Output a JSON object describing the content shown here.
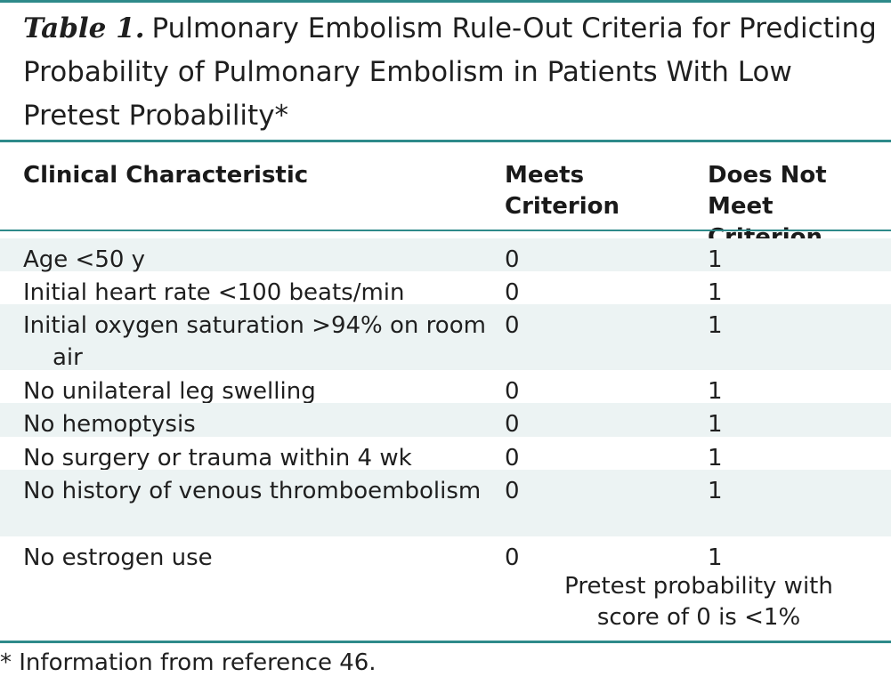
{
  "table": {
    "label": "Table 1.",
    "title": "Pulmonary Embolism Rule-Out Criteria for Predicting Probability of Pulmonary Embolism in Patients With Low Pretest Probability*",
    "columns": {
      "characteristic": "Clinical Characteristic",
      "meets": "Meets Criterion",
      "not_meets": "Does Not Meet Criterion"
    },
    "rows": [
      {
        "characteristic": "Age <50 y",
        "meets": "0",
        "not_meets": "1"
      },
      {
        "characteristic": "Initial heart rate <100 beats/min",
        "meets": "0",
        "not_meets": "1"
      },
      {
        "characteristic": "Initial oxygen saturation >94% on room air",
        "meets": "0",
        "not_meets": "1"
      },
      {
        "characteristic": "No unilateral leg swelling",
        "meets": "0",
        "not_meets": "1"
      },
      {
        "characteristic": "No hemoptysis",
        "meets": "0",
        "not_meets": "1"
      },
      {
        "characteristic": "No surgery or trauma within 4 wk",
        "meets": "0",
        "not_meets": "1"
      },
      {
        "characteristic": "No history of venous thromboembolism",
        "meets": "0",
        "not_meets": "1"
      },
      {
        "characteristic": "No estrogen use",
        "meets": "0",
        "not_meets": "1"
      }
    ],
    "note": "Pretest probability with score of 0 is <1%",
    "footnote": "* Information from reference 46.",
    "accent_color": "#2e8a8a",
    "shade_color": "#ecf3f3"
  }
}
